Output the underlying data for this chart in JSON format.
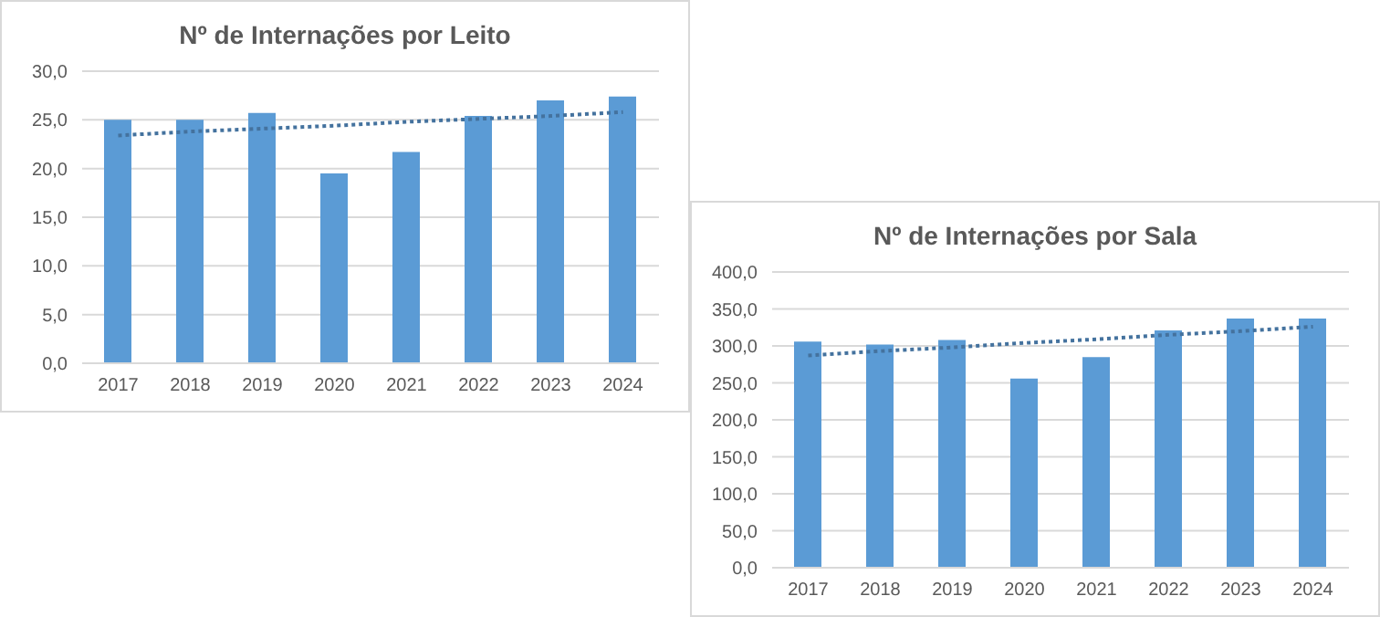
{
  "chart_data": [
    {
      "type": "bar",
      "title": "Nº de Internações por Leito",
      "categories": [
        "2017",
        "2018",
        "2019",
        "2020",
        "2021",
        "2022",
        "2023",
        "2024"
      ],
      "series": [
        {
          "color": "#5b9bd5",
          "values": [
            25.0,
            25.0,
            25.7,
            19.5,
            21.7,
            25.4,
            27.0,
            27.4
          ]
        },
        {
          "type": "line",
          "color": "#44729e",
          "line_style": "dotted",
          "marker": "none",
          "values": [
            23.4,
            23.8,
            24.1,
            24.4,
            24.8,
            25.1,
            25.4,
            25.8
          ]
        }
      ],
      "ylim": [
        0,
        30
      ],
      "yticks": [
        {
          "value": 0,
          "label": "0,0"
        },
        {
          "value": 5,
          "label": "5,0"
        },
        {
          "value": 10,
          "label": "10,0"
        },
        {
          "value": 15,
          "label": "15,0"
        },
        {
          "value": 20,
          "label": "20,0"
        },
        {
          "value": 25,
          "label": "25,0"
        },
        {
          "value": 30,
          "label": "30,0"
        }
      ],
      "grid": "y",
      "legend": false
    },
    {
      "type": "bar",
      "title": "Nº de Internações por Sala",
      "categories": [
        "2017",
        "2018",
        "2019",
        "2020",
        "2021",
        "2022",
        "2023",
        "2024"
      ],
      "series": [
        {
          "color": "#5b9bd5",
          "values": [
            306,
            302,
            308,
            256,
            285,
            321,
            337,
            337
          ]
        },
        {
          "type": "line",
          "color": "#44729e",
          "line_style": "dotted",
          "marker": "none",
          "values": [
            287,
            293,
            298,
            304,
            309,
            315,
            320,
            326
          ]
        }
      ],
      "ylim": [
        0,
        400
      ],
      "yticks": [
        {
          "value": 0,
          "label": "0,0"
        },
        {
          "value": 50,
          "label": "50,0"
        },
        {
          "value": 100,
          "label": "100,0"
        },
        {
          "value": 150,
          "label": "150,0"
        },
        {
          "value": 200,
          "label": "200,0"
        },
        {
          "value": 250,
          "label": "250,0"
        },
        {
          "value": 300,
          "label": "300,0"
        },
        {
          "value": 350,
          "label": "350,0"
        },
        {
          "value": 400,
          "label": "400,0"
        }
      ],
      "grid": "y",
      "legend": false
    }
  ]
}
